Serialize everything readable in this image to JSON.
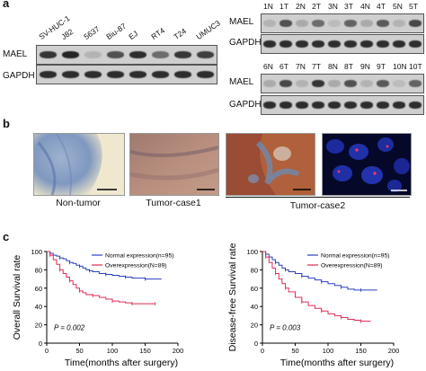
{
  "panels": {
    "a": "a",
    "b": "b",
    "c": "c"
  },
  "blot_left": {
    "lanes": [
      "SV-HUC-1",
      "J82",
      "5637",
      "Biu-87",
      "EJ",
      "RT4",
      "T24",
      "UMUC3"
    ],
    "rows": [
      "MAEL",
      "GAPDH"
    ],
    "mael_intensity": [
      0.85,
      0.95,
      0.15,
      0.7,
      0.9,
      0.55,
      0.85,
      0.8
    ]
  },
  "blot_right_top": {
    "lanes": [
      "1N",
      "1T",
      "2N",
      "2T",
      "3N",
      "3T",
      "4N",
      "4T",
      "5N",
      "5T"
    ],
    "rows": [
      "MAEL",
      "GAPDH"
    ],
    "mael_intensity": [
      0.15,
      0.7,
      0.2,
      0.55,
      0.1,
      0.6,
      0.2,
      0.65,
      0.15,
      0.75
    ]
  },
  "blot_right_bottom": {
    "lanes": [
      "6N",
      "6T",
      "7N",
      "7T",
      "8N",
      "8T",
      "9N",
      "9T",
      "10N",
      "10T"
    ],
    "rows": [
      "MAEL",
      "GAPDH"
    ],
    "mael_intensity": [
      0.2,
      0.75,
      0.15,
      0.85,
      0.2,
      0.7,
      0.15,
      0.65,
      0.1,
      0.6
    ]
  },
  "micrographs": {
    "captions": [
      "Non-tumor",
      "Tumor-case1",
      "Tumor-case2"
    ]
  },
  "colors": {
    "normal": "#2a3fbf",
    "over": "#e02a55"
  },
  "chart_data": [
    {
      "type": "line",
      "ylabel": "Overall Survival rate",
      "xlabel": "Time(months after surgery)",
      "xlim": [
        0,
        200
      ],
      "ylim": [
        0,
        100
      ],
      "xticks": [
        "0",
        "50",
        "100",
        "150",
        "200"
      ],
      "yticks": [
        "0",
        "20",
        "40",
        "60",
        "80",
        "100"
      ],
      "pvalue": "P = 0.002",
      "series": [
        {
          "name": "Normal expression(n=95)",
          "x": [
            0,
            5,
            10,
            15,
            20,
            25,
            30,
            35,
            40,
            45,
            50,
            55,
            60,
            65,
            70,
            80,
            90,
            100,
            110,
            120,
            130,
            140,
            150,
            160,
            175
          ],
          "y": [
            100,
            98,
            96,
            95,
            93,
            92,
            90,
            88,
            87,
            85,
            84,
            82,
            80,
            79,
            78,
            76,
            75,
            74,
            73,
            72,
            71,
            71,
            70,
            70,
            70
          ]
        },
        {
          "name": "Overexpression(N=89)",
          "x": [
            0,
            5,
            10,
            15,
            20,
            25,
            30,
            35,
            40,
            45,
            50,
            55,
            60,
            70,
            80,
            90,
            100,
            110,
            120,
            130,
            140,
            150,
            165
          ],
          "y": [
            100,
            96,
            91,
            86,
            80,
            76,
            72,
            68,
            64,
            60,
            57,
            55,
            53,
            52,
            50,
            48,
            46,
            45,
            44,
            43,
            43,
            43,
            43
          ]
        }
      ]
    },
    {
      "type": "line",
      "ylabel": "Disease-free Survival rate",
      "xlabel": "Time(months after surgery)",
      "xlim": [
        0,
        200
      ],
      "ylim": [
        0,
        100
      ],
      "xticks": [
        "0",
        "50",
        "100",
        "150",
        "200"
      ],
      "yticks": [
        "0",
        "20",
        "40",
        "60",
        "80",
        "100"
      ],
      "pvalue": "P = 0.003",
      "series": [
        {
          "name": "Normal expression(n=95)",
          "x": [
            0,
            5,
            10,
            15,
            20,
            25,
            30,
            35,
            40,
            50,
            60,
            70,
            80,
            90,
            100,
            110,
            120,
            130,
            140,
            150,
            160,
            175
          ],
          "y": [
            100,
            97,
            94,
            91,
            88,
            85,
            82,
            80,
            78,
            76,
            73,
            71,
            69,
            67,
            65,
            63,
            61,
            59,
            58,
            58,
            58,
            58
          ]
        },
        {
          "name": "Overexpression(N=89)",
          "x": [
            0,
            5,
            10,
            15,
            20,
            25,
            30,
            35,
            40,
            50,
            60,
            70,
            80,
            90,
            100,
            110,
            120,
            130,
            140,
            150,
            160,
            165
          ],
          "y": [
            100,
            94,
            88,
            82,
            76,
            70,
            65,
            60,
            56,
            50,
            45,
            41,
            38,
            35,
            32,
            30,
            28,
            26,
            25,
            24,
            24,
            24
          ]
        }
      ]
    }
  ]
}
